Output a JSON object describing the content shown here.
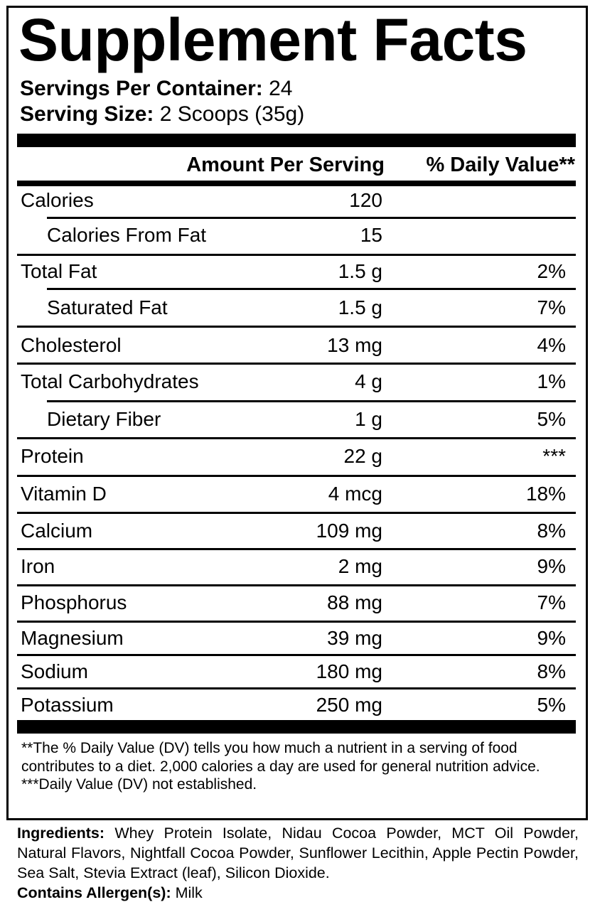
{
  "title": "Supplement Facts",
  "servings": {
    "per_container_label": "Servings Per Container:",
    "per_container_value": "24",
    "size_label": "Serving Size:",
    "size_value": "2 Scoops (35g)"
  },
  "header": {
    "amount": "Amount Per Serving",
    "dv": "% Daily Value**"
  },
  "rows": [
    {
      "name": "Calories",
      "amount": "120",
      "dv": "",
      "indent": false
    },
    {
      "name": "Calories From Fat",
      "amount": "15",
      "dv": "",
      "indent": true
    },
    {
      "name": "Total Fat",
      "amount": "1.5 g",
      "dv": "2%",
      "indent": false
    },
    {
      "name": "Saturated Fat",
      "amount": "1.5 g",
      "dv": "7%",
      "indent": true
    },
    {
      "name": "Cholesterol",
      "amount": "13 mg",
      "dv": "4%",
      "indent": false
    },
    {
      "name": "Total Carbohydrates",
      "amount": "4 g",
      "dv": "1%",
      "indent": false
    },
    {
      "name": "Dietary Fiber",
      "amount": "1 g",
      "dv": "5%",
      "indent": true
    },
    {
      "name": "Protein",
      "amount": "22 g",
      "dv": "***",
      "indent": false
    },
    {
      "name": "Vitamin D",
      "amount": "4 mcg",
      "dv": "18%",
      "indent": false
    },
    {
      "name": "Calcium",
      "amount": "109 mg",
      "dv": "8%",
      "indent": false
    },
    {
      "name": "Iron",
      "amount": "2 mg",
      "dv": "9%",
      "indent": false
    },
    {
      "name": "Phosphorus",
      "amount": "88 mg",
      "dv": "7%",
      "indent": false
    },
    {
      "name": "Magnesium",
      "amount": "39 mg",
      "dv": "9%",
      "indent": false
    },
    {
      "name": "Sodium",
      "amount": "180 mg",
      "dv": "8%",
      "indent": false
    },
    {
      "name": "Potassium",
      "amount": "250 mg",
      "dv": "5%",
      "indent": false
    }
  ],
  "footnotes": {
    "dv_note": "**The % Daily Value (DV) tells you how much a nutrient in a serving of food contributes to a diet. 2,000 calories a day are used for general nutrition advice.",
    "not_established": "***Daily Value (DV) not established."
  },
  "ingredients": {
    "label": "Ingredients:",
    "text": "Whey Protein Isolate, Nidau Cocoa Powder, MCT Oil Powder, Natural Flavors, Nightfall Cocoa Powder, Sunflower Lecithin, Apple Pectin Powder, Sea Salt, Stevia Extract (leaf), Silicon Dioxide.",
    "allergen_label": "Contains Allergen(s):",
    "allergen_value": "Milk"
  }
}
